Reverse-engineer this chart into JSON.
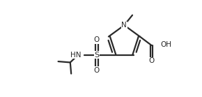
{
  "bg_color": "#ffffff",
  "line_color": "#2a2a2a",
  "line_width": 1.6,
  "figsize": [
    2.9,
    1.39
  ],
  "dpi": 100,
  "xlim": [
    0,
    10
  ],
  "ylim": [
    0,
    5
  ]
}
